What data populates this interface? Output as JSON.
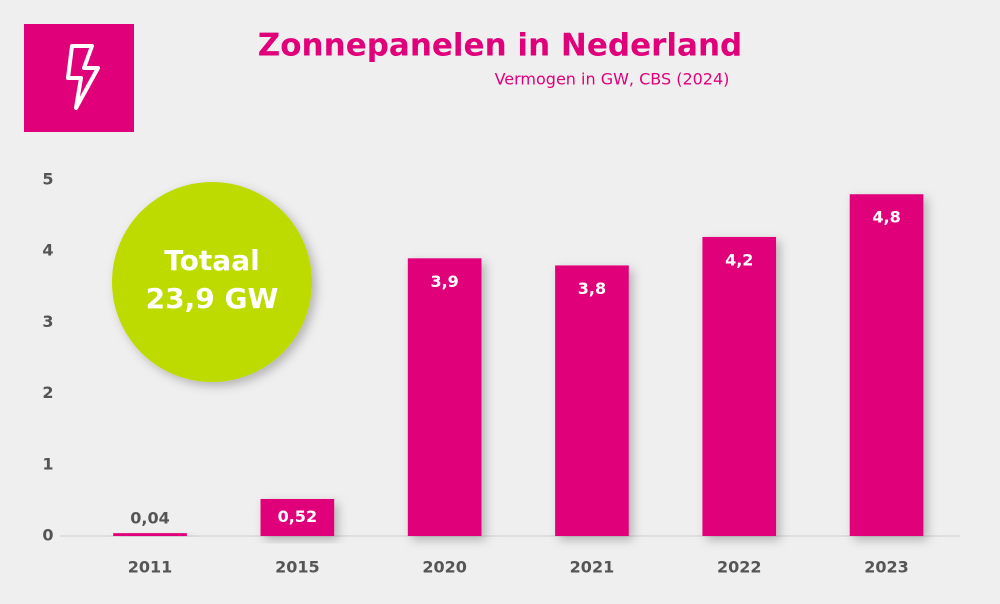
{
  "chart_data": {
    "type": "bar",
    "title": "Zonnepanelen in Nederland",
    "subtitle": "Vermogen in GW, CBS (2024)",
    "annotation": [
      "Totaal",
      "23,9 GW"
    ],
    "categories": [
      "2011",
      "2015",
      "2020",
      "2021",
      "2022",
      "2023"
    ],
    "values": [
      0.04,
      0.52,
      3.9,
      3.8,
      4.2,
      4.8
    ],
    "value_labels": [
      "0,04",
      "0,52",
      "3,9",
      "3,8",
      "4,2",
      "4,8"
    ],
    "color": "#e0007a",
    "ylim": [
      0,
      5
    ],
    "yticks": [
      0,
      1,
      2,
      3,
      4,
      5
    ],
    "grid": false
  }
}
